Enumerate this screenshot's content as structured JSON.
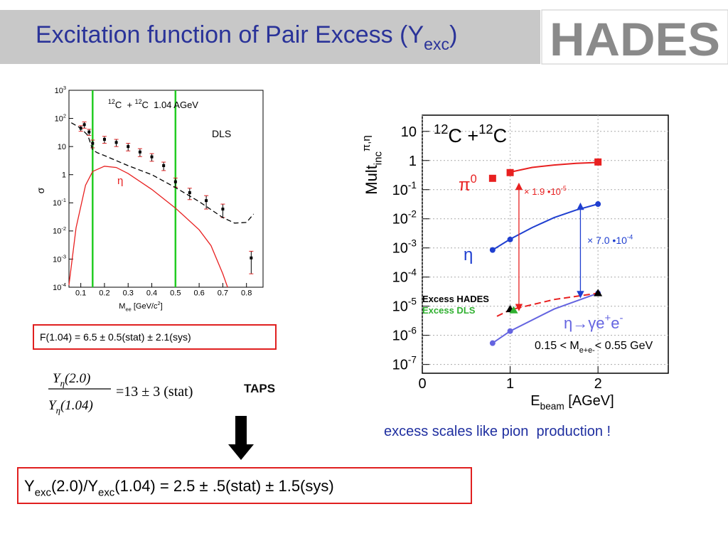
{
  "slide": {
    "title": [
      {
        "text": "Excitation function of Pair Excess (Y"
      },
      {
        "sub": "exc"
      },
      {
        "text": ")"
      }
    ],
    "logo": "HADES",
    "box1": "F(1.04) = 6.5 ± 0.5(stat) ± 2.1(sys)",
    "formula": {
      "numerator": [
        {
          "text": "Y"
        },
        {
          "sub": "η"
        },
        {
          "text": "(2.0)"
        }
      ],
      "denominator": [
        {
          "text": "Y"
        },
        {
          "sub": "η"
        },
        {
          "text": "(1.04)"
        }
      ],
      "rhs": "=13 ± 3 (stat)",
      "source": "TAPS"
    },
    "caption": "excess scales like pion  production !",
    "box2": [
      {
        "text": "Y"
      },
      {
        "sub": "exc"
      },
      {
        "text": "(2.0)/Y"
      },
      {
        "sub": "exc"
      },
      {
        "text": "(1.04) = 2.5 ± .5(stat) ± 1.5(sys)"
      }
    ]
  },
  "chart_data": [
    {
      "type": "scatter",
      "log_y": true,
      "grid": false,
      "xlim": [
        0.05,
        0.87
      ],
      "ylim": [
        0.0001,
        1000
      ],
      "xticks": [
        0.1,
        0.2,
        0.3,
        0.4,
        0.5,
        0.6,
        0.7,
        0.8
      ],
      "yticks": [
        {
          "value": 0.0001,
          "label": "10",
          "exponent": "-4"
        },
        {
          "value": 0.001,
          "label": "10",
          "exponent": "-3"
        },
        {
          "value": 0.01,
          "label": "10",
          "exponent": "-2"
        },
        {
          "value": 0.1,
          "label": "10",
          "exponent": "-1"
        },
        1,
        10,
        {
          "value": 100,
          "label": "10",
          "exponent": "2"
        },
        {
          "value": 1000,
          "label": "10",
          "exponent": "3"
        }
      ],
      "xlabel": [
        {
          "text": "M"
        },
        {
          "sub": "ee"
        },
        {
          "text": " [GeV/c"
        },
        {
          "sup": "2"
        },
        {
          "text": "]"
        }
      ],
      "ylabel": [
        {
          "text": "σ"
        }
      ],
      "vlines": [
        0.15,
        0.5
      ],
      "vline_color": "#22cc22",
      "series": [
        {
          "style": "markers",
          "marker": "square",
          "color": "#000000",
          "error_color": "#e02020",
          "x": [
            0.1,
            0.115,
            0.135,
            0.15,
            0.2,
            0.25,
            0.3,
            0.35,
            0.4,
            0.45,
            0.5,
            0.56,
            0.63,
            0.7,
            0.82
          ],
          "values": [
            45,
            60,
            33,
            13,
            18,
            14,
            10,
            6.4,
            4.3,
            2.1,
            0.56,
            0.23,
            0.12,
            0.06,
            0.0011
          ],
          "errors": [
            10,
            15,
            8,
            4,
            5,
            4,
            3,
            2,
            1.3,
            0.7,
            0.2,
            0.1,
            0.06,
            0.03,
            0.0008
          ]
        },
        {
          "style": "dashed",
          "color": "#000000",
          "x": [
            0.06,
            0.1,
            0.13,
            0.15,
            0.17,
            0.2,
            0.3,
            0.4,
            0.5,
            0.6,
            0.7,
            0.75,
            0.8,
            0.83
          ],
          "values": [
            70,
            45,
            25,
            7.6,
            6,
            4.8,
            2.1,
            1,
            0.35,
            0.11,
            0.03,
            0.019,
            0.02,
            0.04
          ]
        },
        {
          "style": "line",
          "color": "#e82020",
          "x": [
            0.05,
            0.08,
            0.12,
            0.15,
            0.2,
            0.25,
            0.3,
            0.4,
            0.5,
            0.6,
            0.65,
            0.7,
            0.72
          ],
          "values": [
            0.00012,
            0.013,
            0.42,
            1.3,
            2,
            1.8,
            1.1,
            0.3,
            0.065,
            0.011,
            0.003,
            0.0003,
            0.0001
          ]
        }
      ],
      "labels": [
        {
          "parts": [
            {
              "sup": "12"
            },
            {
              "text": "C  + "
            },
            {
              "sup": "12"
            },
            {
              "text": "C  1.04 AGeV"
            }
          ],
          "color": "#000000"
        },
        {
          "parts": [
            {
              "text": "DLS"
            }
          ],
          "color": "#000000"
        },
        {
          "parts": [
            {
              "text": "η"
            }
          ],
          "color": "#e82020"
        }
      ]
    },
    {
      "type": "scatter",
      "log_y": true,
      "grid": true,
      "xlim": [
        0,
        2.8
      ],
      "ylim": [
        5e-08,
        36
      ],
      "xticks": [
        0,
        1,
        2
      ],
      "yticks": [
        {
          "value": 1e-07,
          "label": "10",
          "exponent": "-7"
        },
        {
          "value": 1e-06,
          "label": "10",
          "exponent": "-6"
        },
        {
          "value": 1e-05,
          "label": "10",
          "exponent": "-5"
        },
        {
          "value": 0.0001,
          "label": "10",
          "exponent": "-4"
        },
        {
          "value": 0.001,
          "label": "10",
          "exponent": "-3"
        },
        {
          "value": 0.01,
          "label": "10",
          "exponent": "-2"
        },
        {
          "value": 0.1,
          "label": "10",
          "exponent": "-1"
        },
        1,
        10
      ],
      "xlabel": [
        {
          "text": "E"
        },
        {
          "sub": "beam"
        },
        {
          "text": " [AGeV]"
        }
      ],
      "ylabel": [
        {
          "text": "Mult"
        },
        {
          "sub": "inc"
        },
        {
          "sup": "π,η"
        }
      ],
      "series": [
        {
          "style": "line",
          "color": "#e82020",
          "x": [
            1,
            1.25,
            1.5,
            1.75,
            2
          ],
          "values": [
            0.4,
            0.58,
            0.7,
            0.8,
            0.86
          ]
        },
        {
          "style": "markers",
          "marker": "square",
          "color": "#e82020",
          "x": [
            0.8,
            1,
            2
          ],
          "values": [
            0.245,
            0.385,
            0.89
          ]
        },
        {
          "style": "line",
          "color": "#1f3fd0",
          "x": [
            0.8,
            1,
            1.25,
            1.5,
            1.75,
            2
          ],
          "values": [
            0.00085,
            0.002,
            0.005,
            0.011,
            0.02,
            0.032
          ]
        },
        {
          "style": "markers",
          "marker": "circle",
          "color": "#1f3fd0",
          "x": [
            0.8,
            1,
            2
          ],
          "values": [
            0.00085,
            0.00195,
            0.032
          ]
        },
        {
          "style": "line",
          "color": "#6464e0",
          "x": [
            0.8,
            1,
            1.5,
            2
          ],
          "values": [
            5.4e-07,
            1.4e-06,
            8e-06,
            2.8e-05
          ]
        },
        {
          "style": "markers",
          "marker": "circle",
          "color": "#6464e0",
          "x": [
            0.8,
            1,
            2
          ],
          "values": [
            5.4e-07,
            1.4e-06,
            2.8e-05
          ]
        },
        {
          "style": "dashed",
          "color": "#e82020",
          "x": [
            0.85,
            1,
            1.5,
            2
          ],
          "values": [
            4.5e-06,
            7.5e-06,
            1.7e-05,
            2.8e-05
          ]
        },
        {
          "style": "markers",
          "marker": "triangle",
          "color": "#000000",
          "x": [
            1,
            2
          ],
          "values": [
            7.9e-06,
            2.8e-05
          ]
        },
        {
          "style": "markers",
          "marker": "triangle",
          "color": "#30b030",
          "x": [
            1.04
          ],
          "values": [
            7.2e-06
          ]
        }
      ],
      "arrows": [
        {
          "x": 1.1,
          "y": [
            0.13,
            9e-06
          ],
          "color": "#e82020"
        },
        {
          "x": 1.8,
          "y": [
            0.027,
            2.5e-05
          ],
          "color": "#1f3fd0"
        }
      ],
      "labels": [
        {
          "parts": [
            {
              "sup": "12"
            },
            {
              "text": "C +"
            },
            {
              "sup": "12"
            },
            {
              "text": "C"
            }
          ],
          "color": "#000000"
        },
        {
          "parts": [
            {
              "text": "π"
            },
            {
              "sup": "0"
            }
          ],
          "color": "#e82020"
        },
        {
          "parts": [
            {
              "text": "η"
            }
          ],
          "color": "#1f3fd0"
        },
        {
          "parts": [
            {
              "text": "η→γe"
            },
            {
              "sup": "+"
            },
            {
              "text": "e"
            },
            {
              "sup": "-"
            }
          ],
          "color": "#6464e0"
        },
        {
          "parts": [
            {
              "text": "Excess HADES"
            }
          ],
          "color": "#000000"
        },
        {
          "parts": [
            {
              "text": "Excess DLS"
            }
          ],
          "color": "#30b030"
        },
        {
          "parts": [
            {
              "text": "0.15 < M"
            },
            {
              "sub": "e+e-"
            },
            {
              "text": "< 0.55 GeV"
            }
          ],
          "color": "#000000"
        },
        {
          "parts": [
            {
              "text": "× 1.9 •10"
            },
            {
              "sup": "-5"
            }
          ],
          "color": "#e82020"
        },
        {
          "parts": [
            {
              "text": "× 7.0 •10"
            },
            {
              "sup": "-4"
            }
          ],
          "color": "#1f3fd0"
        }
      ]
    }
  ]
}
